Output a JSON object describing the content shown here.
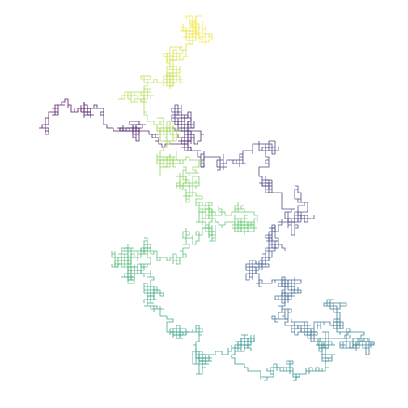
{
  "figure": {
    "kind": "random-walk-path",
    "background": "#ffffff",
    "colormap": [
      "#440154",
      "#3b528b",
      "#21918c",
      "#5ec962",
      "#fde725"
    ],
    "step_count": 6000,
    "stroke_opacity": 0.9
  }
}
